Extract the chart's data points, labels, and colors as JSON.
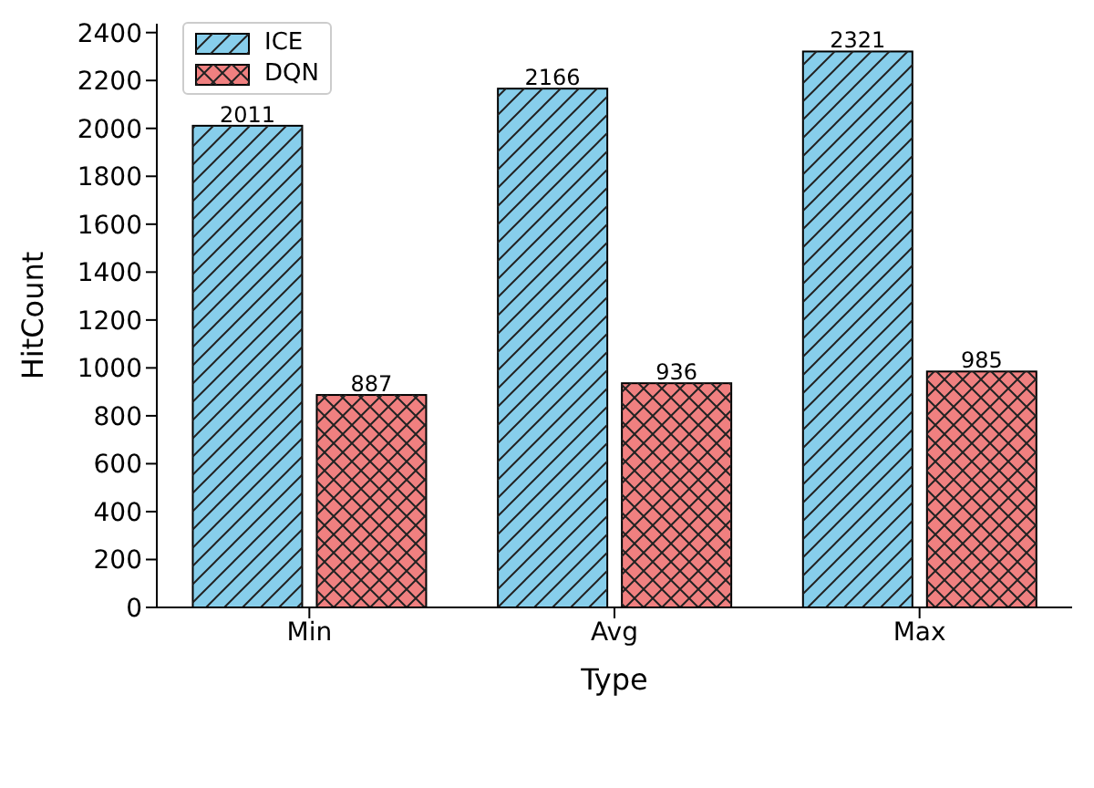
{
  "chart_data": {
    "type": "bar",
    "xlabel": "Type",
    "ylabel": "HitCount",
    "categories": [
      "Min",
      "Avg",
      "Max"
    ],
    "series": [
      {
        "name": "ICE",
        "color": "#87ceeb",
        "values": [
          2011,
          2166,
          2321
        ]
      },
      {
        "name": "DQN",
        "color": "#f08080",
        "values": [
          887,
          936,
          985
        ]
      }
    ],
    "ylim": [
      0,
      2437
    ],
    "yticks": [
      0,
      200,
      400,
      600,
      800,
      1000,
      1200,
      1400,
      1600,
      1800,
      2000,
      2200,
      2400
    ],
    "grid": false,
    "legend": "top left",
    "data_labels": true
  }
}
